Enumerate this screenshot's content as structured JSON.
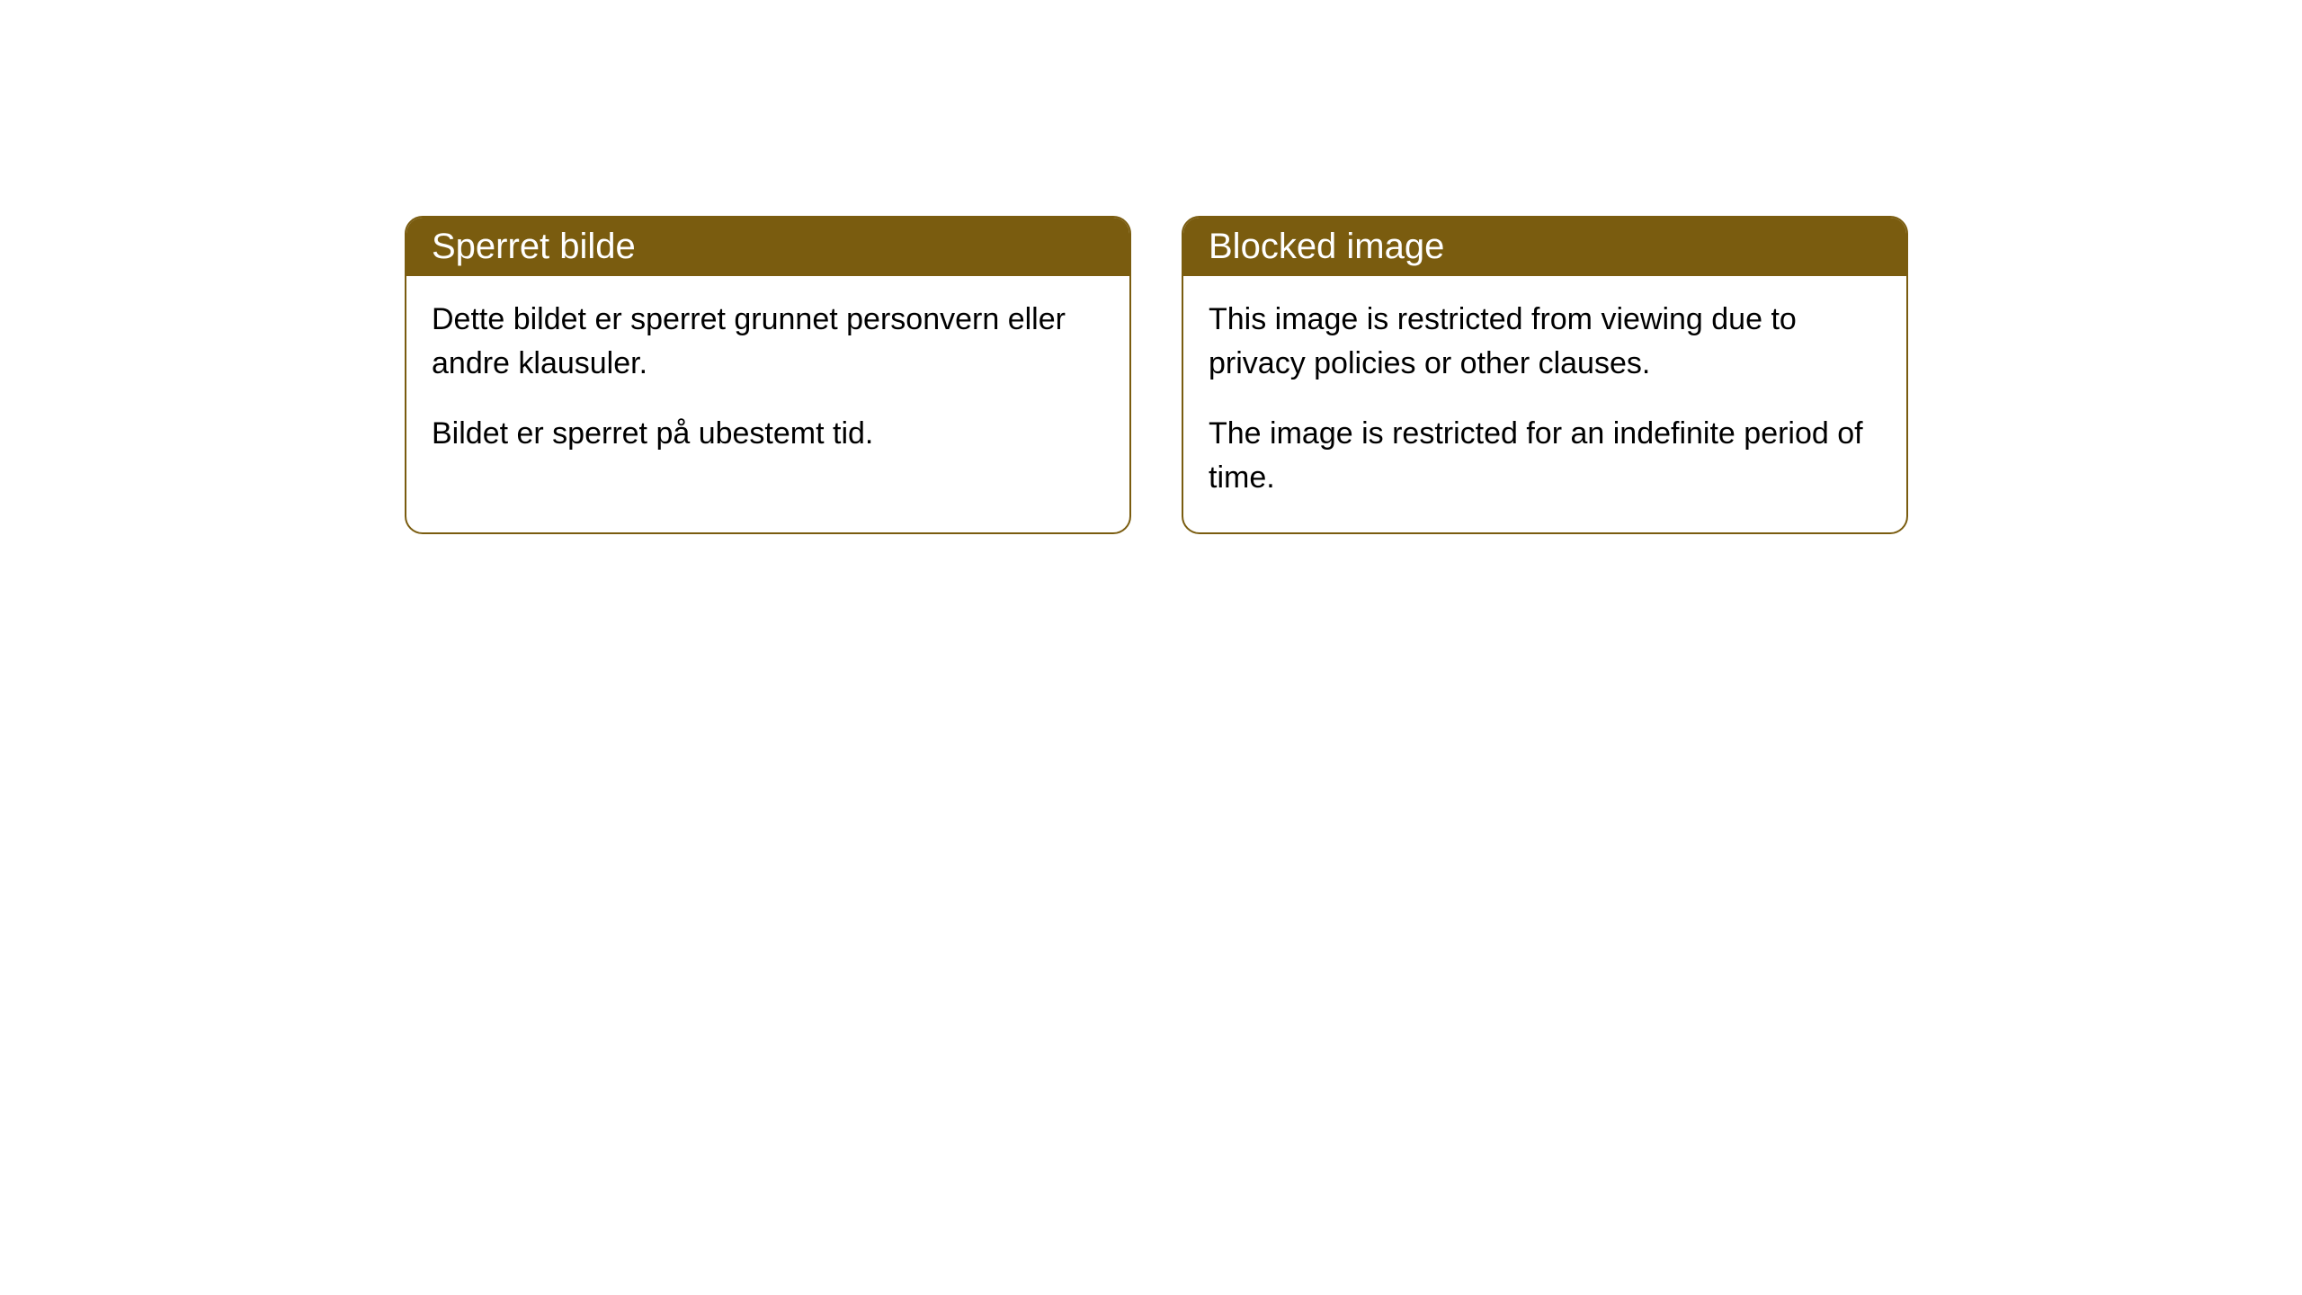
{
  "cards": [
    {
      "title": "Sperret bilde",
      "paragraph1": "Dette bildet er sperret grunnet personvern eller andre klausuler.",
      "paragraph2": "Bildet er sperret på ubestemt tid."
    },
    {
      "title": "Blocked image",
      "paragraph1": "This image is restricted from viewing due to privacy policies or other clauses.",
      "paragraph2": "The image is restricted for an indefinite period of time."
    }
  ],
  "styling": {
    "header_bg_color": "#7a5c0f",
    "header_text_color": "#ffffff",
    "border_color": "#7a5c0f",
    "body_bg_color": "#ffffff",
    "body_text_color": "#000000",
    "border_radius": 20,
    "title_fontsize": 40,
    "body_fontsize": 34
  }
}
